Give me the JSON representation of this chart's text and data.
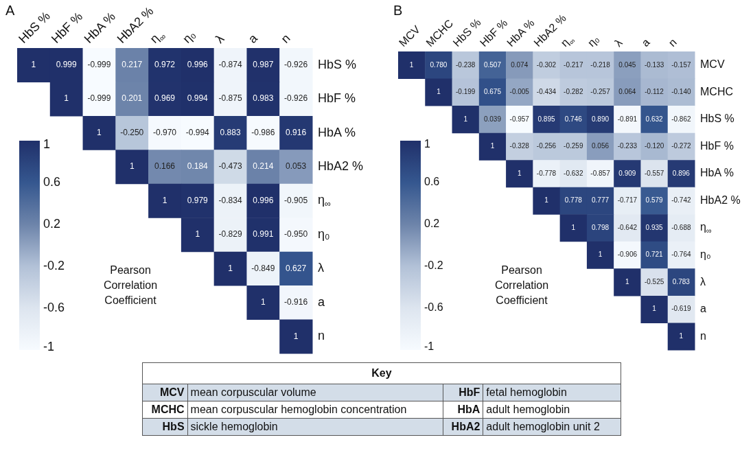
{
  "chart_data": [
    {
      "type": "heatmap",
      "title": "A",
      "clabel": "Pearson Correlation Coefficient",
      "annotations": [
        "1",
        "0.6",
        "0.2",
        "-0.2",
        "-0.6",
        "-1"
      ],
      "data_labels": true,
      "categories": [
        "HbS %",
        "HbF %",
        "HbA %",
        "HbA2 %",
        "η$_{∞}$",
        "η₀",
        "λ",
        "a",
        "n"
      ],
      "y_categories": [
        "HbS %",
        "HbF %",
        "HbA %",
        "HbA2 %",
        "η$_{∞}$",
        "η₀",
        "λ",
        "a",
        "n"
      ],
      "cells": [
        [
          1,
          0.999,
          -0.999,
          0.217,
          0.972,
          0.996,
          -0.874,
          0.987,
          -0.926
        ],
        [
          null,
          1,
          -0.999,
          0.201,
          0.969,
          0.994,
          -0.875,
          0.983,
          -0.926
        ],
        [
          null,
          null,
          1,
          -0.25,
          -0.97,
          -0.994,
          0.883,
          -0.986,
          0.916
        ],
        [
          null,
          null,
          null,
          1,
          0.166,
          0.184,
          -0.473,
          0.214,
          0.053
        ],
        [
          null,
          null,
          null,
          null,
          1,
          0.979,
          -0.834,
          0.996,
          -0.905
        ],
        [
          null,
          null,
          null,
          null,
          null,
          1,
          -0.829,
          0.991,
          -0.95
        ],
        [
          null,
          null,
          null,
          null,
          null,
          null,
          1,
          -0.849,
          0.627
        ],
        [
          null,
          null,
          null,
          null,
          null,
          null,
          null,
          1,
          -0.916
        ],
        [
          null,
          null,
          null,
          null,
          null,
          null,
          null,
          null,
          1
        ]
      ],
      "cell_labels": [
        [
          "1",
          "0.999",
          "-0.999",
          "0.217",
          "0.972",
          "0.996",
          "-0.874",
          "0.987",
          "-0.926"
        ],
        [
          null,
          "1",
          "-0.999",
          "0.201",
          "0.969",
          "0.994",
          "-0.875",
          "0.983",
          "-0.926"
        ],
        [
          null,
          null,
          "1",
          "-0.250",
          "-0.970",
          "-0.994",
          "0.883",
          "-0.986",
          "0.916"
        ],
        [
          null,
          null,
          null,
          "1",
          "0.166",
          "0.184",
          "-0.473",
          "0.214",
          "0.053"
        ],
        [
          null,
          null,
          null,
          null,
          "1",
          "0.979",
          "-0.834",
          "0.996",
          "-0.905"
        ],
        [
          null,
          null,
          null,
          null,
          null,
          "1",
          "-0.829",
          "0.991",
          "-0.950"
        ],
        [
          null,
          null,
          null,
          null,
          null,
          null,
          "1",
          "-0.849",
          "0.627"
        ],
        [
          null,
          null,
          null,
          null,
          null,
          null,
          null,
          "1",
          "-0.916"
        ],
        [
          null,
          null,
          null,
          null,
          null,
          null,
          null,
          null,
          "1"
        ]
      ]
    },
    {
      "type": "heatmap",
      "title": "B",
      "clabel": "Pearson Correlation Coefficient",
      "annotations": [
        "1",
        "0.6",
        "0.2",
        "-0.2",
        "-0.6",
        "-1"
      ],
      "data_labels": true,
      "categories": [
        "MCV",
        "MCHC",
        "HbS %",
        "HbF %",
        "HbA %",
        "HbA2 %",
        "η$_{∞}$",
        "η₀",
        "λ",
        "a",
        "n"
      ],
      "y_categories": [
        "MCV",
        "MCHC",
        "HbS %",
        "HbF %",
        "HbA %",
        "HbA2 %",
        "η$_{∞}$",
        "η₀",
        "λ",
        "a",
        "n"
      ],
      "cells": [
        [
          1,
          0.78,
          -0.238,
          0.507,
          0.074,
          -0.302,
          -0.217,
          -0.218,
          0.045,
          -0.133,
          -0.157
        ],
        [
          null,
          1,
          -0.199,
          0.675,
          -0.005,
          -0.434,
          -0.282,
          -0.257,
          0.064,
          -0.112,
          -0.14
        ],
        [
          null,
          null,
          1,
          0.039,
          -0.957,
          0.895,
          0.746,
          0.89,
          -0.891,
          0.632,
          -0.862
        ],
        [
          null,
          null,
          null,
          1,
          -0.328,
          -0.256,
          -0.259,
          0.056,
          -0.233,
          -0.12,
          -0.272
        ],
        [
          null,
          null,
          null,
          null,
          1,
          -0.778,
          -0.632,
          -0.857,
          0.909,
          -0.557,
          0.896
        ],
        [
          null,
          null,
          null,
          null,
          null,
          1,
          0.778,
          0.777,
          -0.717,
          0.579,
          -0.742
        ],
        [
          null,
          null,
          null,
          null,
          null,
          null,
          1,
          0.798,
          -0.642,
          0.935,
          -0.688
        ],
        [
          null,
          null,
          null,
          null,
          null,
          null,
          null,
          1,
          -0.906,
          0.721,
          -0.764
        ],
        [
          null,
          null,
          null,
          null,
          null,
          null,
          null,
          null,
          1,
          -0.525,
          0.783
        ],
        [
          null,
          null,
          null,
          null,
          null,
          null,
          null,
          null,
          null,
          1,
          -0.619
        ],
        [
          null,
          null,
          null,
          null,
          null,
          null,
          null,
          null,
          null,
          null,
          1
        ]
      ],
      "cell_labels": [
        [
          "1",
          "0.780",
          "-0.238",
          "0.507",
          "0.074",
          "-0.302",
          "-0.217",
          "-0.218",
          "0.045",
          "-0.133",
          "-0.157"
        ],
        [
          null,
          "1",
          "-0.199",
          "0.675",
          "-0.005",
          "-0.434",
          "-0.282",
          "-0.257",
          "0.064",
          "-0.112",
          "-0.140"
        ],
        [
          null,
          null,
          "1",
          "0.039",
          "-0.957",
          "0.895",
          "0.746",
          "0.890",
          "-0.891",
          "0.632",
          "-0.862"
        ],
        [
          null,
          null,
          null,
          "1",
          "-0.328",
          "-0.256",
          "-0.259",
          "0.056",
          "-0.233",
          "-0.120",
          "-0.272"
        ],
        [
          null,
          null,
          null,
          null,
          "1",
          "-0.778",
          "-0.632",
          "-0.857",
          "0.909",
          "-0.557",
          "0.896"
        ],
        [
          null,
          null,
          null,
          null,
          null,
          "1",
          "0.778",
          "0.777",
          "-0.717",
          "0.579",
          "-0.742"
        ],
        [
          null,
          null,
          null,
          null,
          null,
          null,
          "1",
          "0.798",
          "-0.642",
          "0.935",
          "-0.688"
        ],
        [
          null,
          null,
          null,
          null,
          null,
          null,
          null,
          "1",
          "-0.906",
          "0.721",
          "-0.764"
        ],
        [
          null,
          null,
          null,
          null,
          null,
          null,
          null,
          null,
          "1",
          "-0.525",
          "0.783"
        ],
        [
          null,
          null,
          null,
          null,
          null,
          null,
          null,
          null,
          null,
          "1",
          "-0.619"
        ],
        [
          null,
          null,
          null,
          null,
          null,
          null,
          null,
          null,
          null,
          null,
          "1"
        ]
      ]
    },
    {
      "type": "other",
      "title": "Key",
      "annotations": [
        "MCV",
        "mean corpuscular volume",
        "HbF",
        "fetal hemoglobin",
        "MCHC",
        "mean corpuscular hemoglobin concentration",
        "HbA",
        "adult hemoglobin",
        "HbS",
        "sickle hemoglobin",
        "HbA2",
        "adult hemoglobin unit 2"
      ]
    }
  ]
}
